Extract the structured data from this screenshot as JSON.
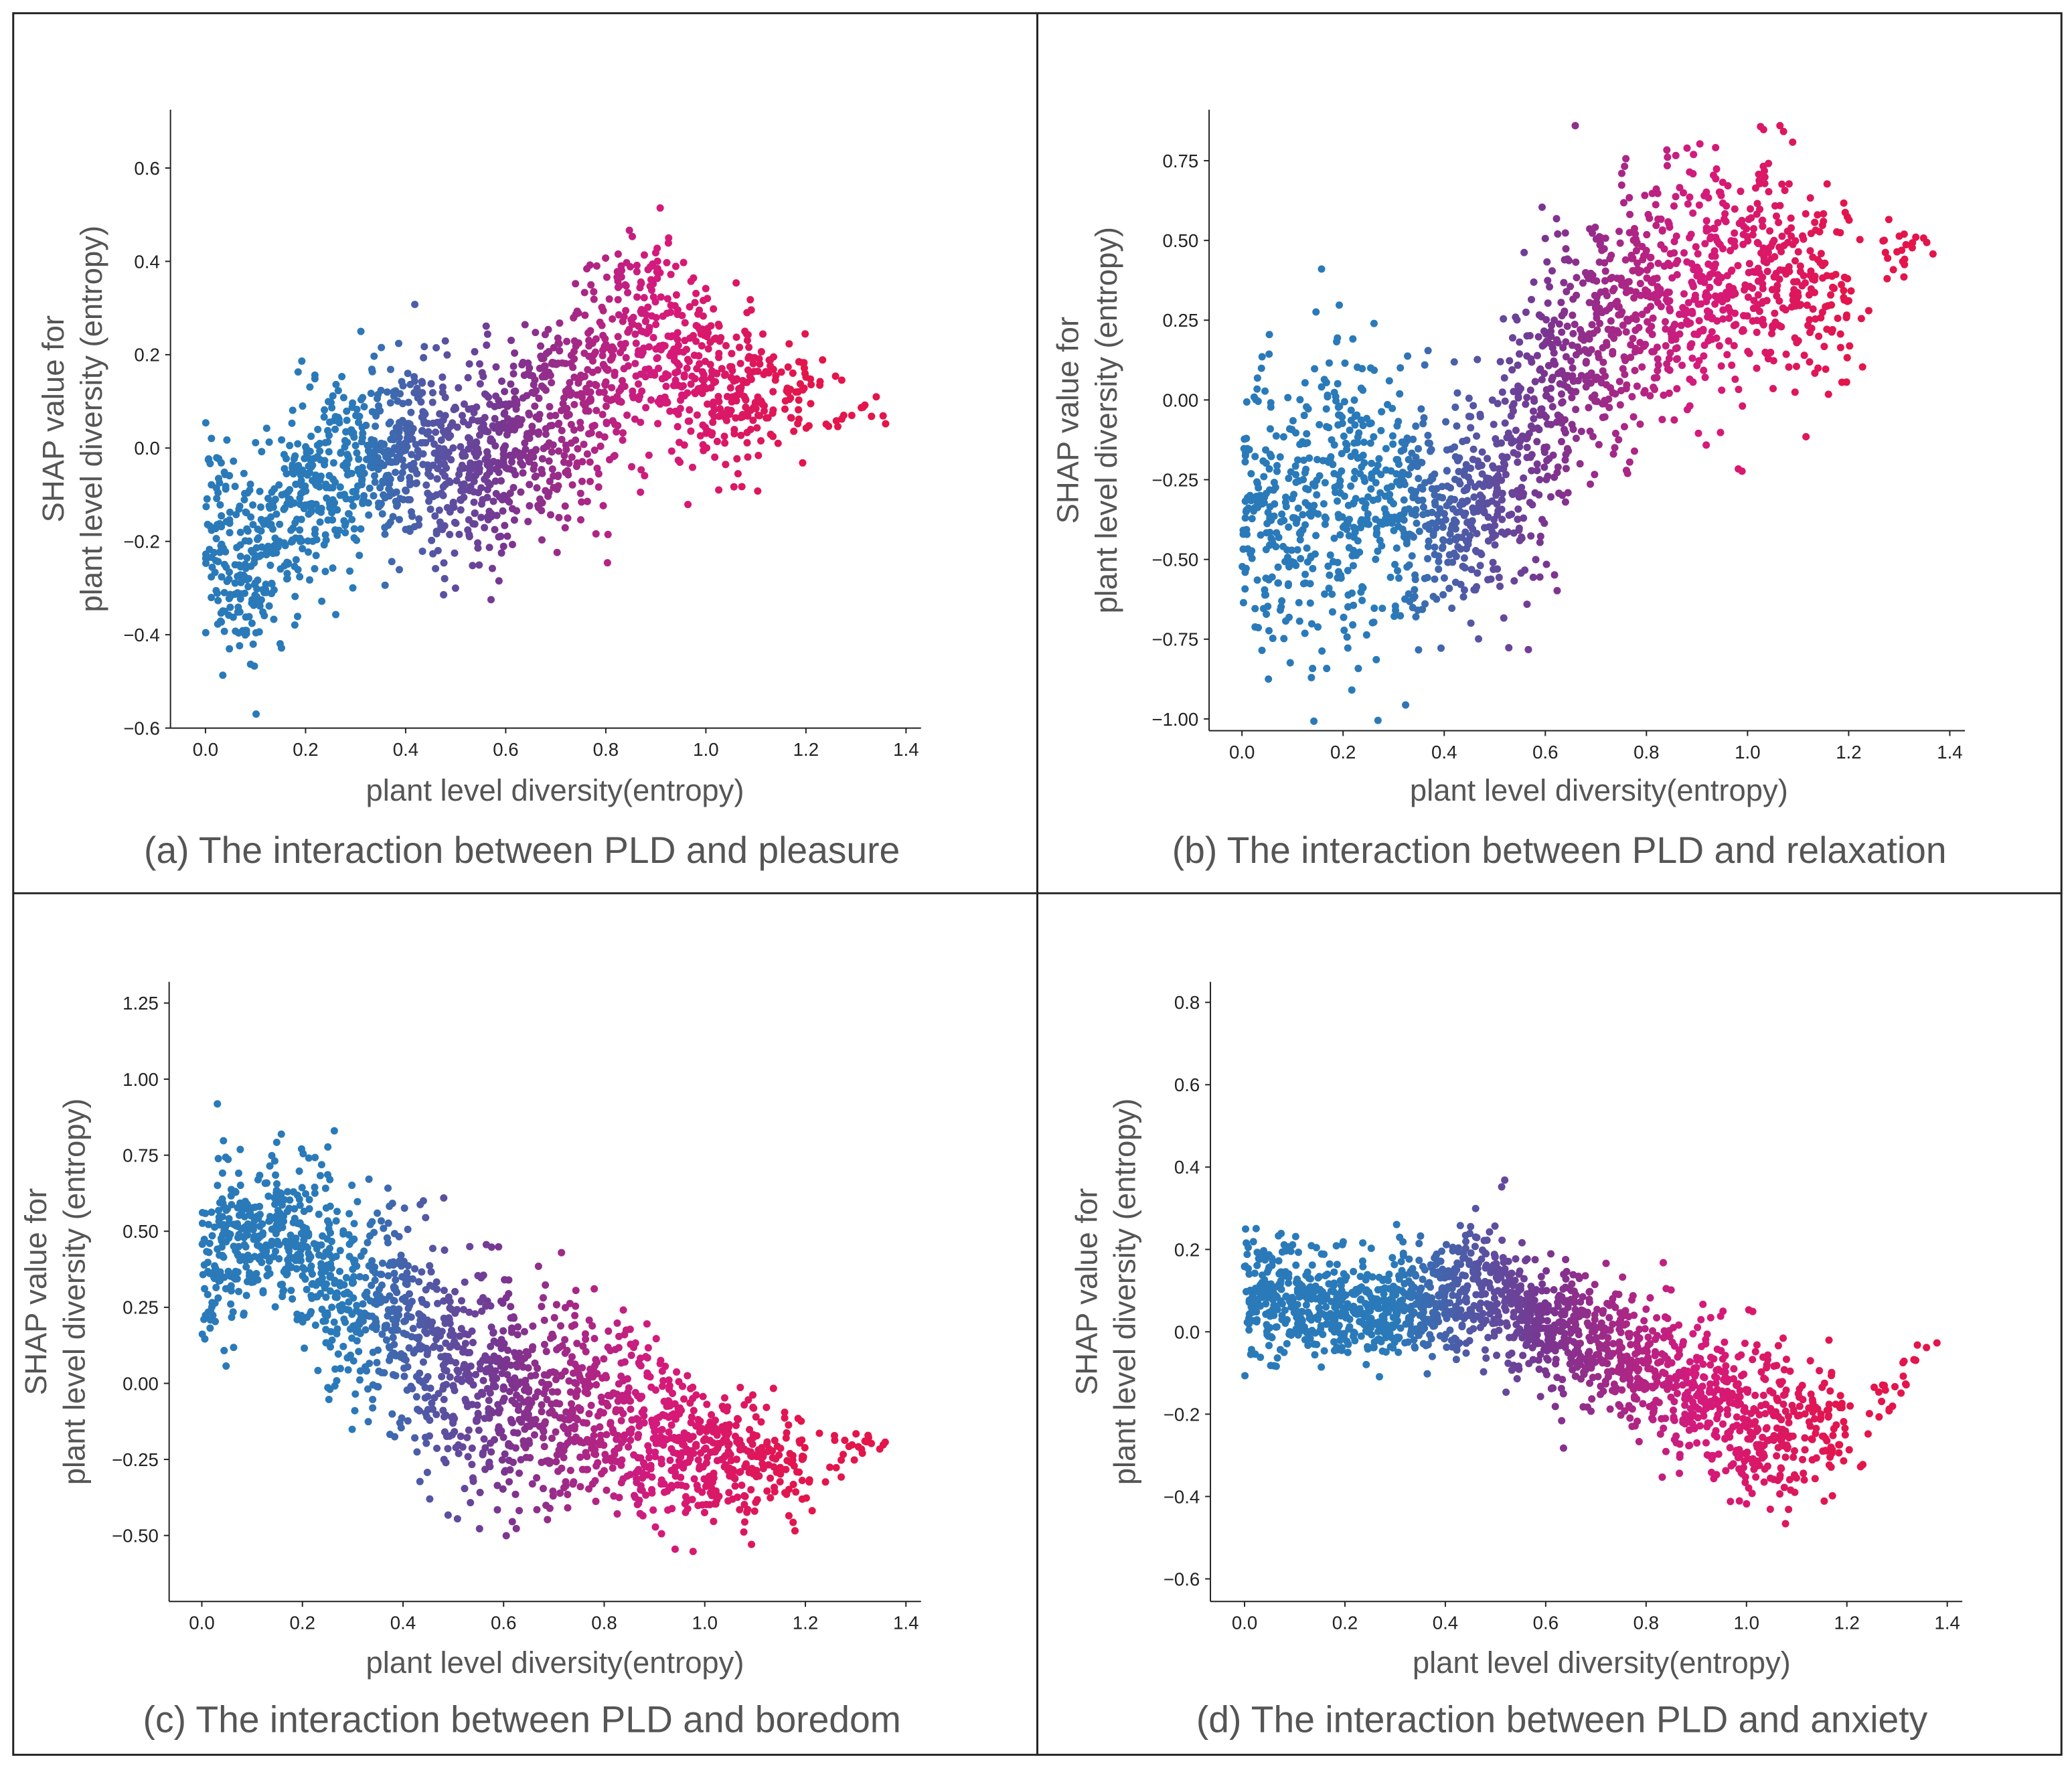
{
  "colors": {
    "low": "#2a7ab9",
    "mid": "#7a3590",
    "high": "#d41a7c",
    "end": "#e3154b",
    "frame": "#222222"
  },
  "chart_data": [
    {
      "type": "scatter",
      "caption": "(a) The interaction between PLD and pleasure",
      "xlabel": "plant level diversity(entropy)",
      "ylabel_line1": "SHAP value for",
      "ylabel_line2": "plant level diversity  (entropy)",
      "xticks": [
        "0.0",
        "0.2",
        "0.4",
        "0.6",
        "0.8",
        "1.0",
        "1.2",
        "1.4"
      ],
      "xtick_values": [
        0,
        0.2,
        0.4,
        0.6,
        0.8,
        1.0,
        1.2,
        1.4
      ],
      "yticks": [
        "0.6",
        "0.4",
        "0.2",
        "0.0",
        "−0.2",
        "−0.4",
        "−0.6"
      ],
      "ytick_values": [
        0.6,
        0.4,
        0.2,
        0,
        -0.2,
        -0.4,
        -0.6
      ],
      "xlim": [
        -0.07,
        1.43
      ],
      "ylim": [
        -0.6,
        0.725
      ],
      "color_by": "plant level diversity (blue low → red high)",
      "bands": [
        [
          0.0,
          -0.2,
          0.15,
          160
        ],
        [
          0.1,
          -0.25,
          0.12,
          150
        ],
        [
          0.2,
          -0.1,
          0.13,
          150
        ],
        [
          0.3,
          -0.05,
          0.12,
          170
        ],
        [
          0.4,
          0.0,
          0.12,
          170
        ],
        [
          0.5,
          -0.05,
          0.15,
          180
        ],
        [
          0.6,
          0.0,
          0.13,
          170
        ],
        [
          0.7,
          0.05,
          0.15,
          160
        ],
        [
          0.8,
          0.15,
          0.15,
          150
        ],
        [
          0.9,
          0.25,
          0.15,
          150
        ],
        [
          1.0,
          0.15,
          0.12,
          130
        ],
        [
          1.1,
          0.1,
          0.1,
          70
        ],
        [
          1.2,
          0.12,
          0.08,
          20
        ],
        [
          1.32,
          0.07,
          0.02,
          4
        ]
      ]
    },
    {
      "type": "scatter",
      "caption": "(b) The interaction between PLD and relaxation",
      "xlabel": "plant level diversity(entropy)",
      "ylabel_line1": "SHAP value for",
      "ylabel_line2": "plant level diversity  (entropy)",
      "xticks": [
        "0.0",
        "0.2",
        "0.4",
        "0.6",
        "0.8",
        "1.0",
        "1.2",
        "1.4"
      ],
      "xtick_values": [
        0,
        0.2,
        0.4,
        0.6,
        0.8,
        1.0,
        1.2,
        1.4
      ],
      "yticks": [
        "0.75",
        "0.50",
        "0.25",
        "0.00",
        "−0.25",
        "−0.50",
        "−0.75",
        "−1.00"
      ],
      "ytick_values": [
        0.75,
        0.5,
        0.25,
        0,
        -0.25,
        -0.5,
        -0.75,
        -1.0
      ],
      "xlim": [
        -0.065,
        1.43
      ],
      "ylim": [
        -1.037,
        0.91
      ],
      "color_by": "plant level diversity (blue low → red high)",
      "bands": [
        [
          0.0,
          -0.35,
          0.3,
          150
        ],
        [
          0.1,
          -0.4,
          0.3,
          150
        ],
        [
          0.2,
          -0.3,
          0.3,
          150
        ],
        [
          0.3,
          -0.3,
          0.25,
          160
        ],
        [
          0.4,
          -0.35,
          0.2,
          160
        ],
        [
          0.5,
          -0.3,
          0.25,
          170
        ],
        [
          0.6,
          0.0,
          0.3,
          170
        ],
        [
          0.7,
          0.2,
          0.25,
          170
        ],
        [
          0.8,
          0.3,
          0.25,
          160
        ],
        [
          0.9,
          0.35,
          0.25,
          150
        ],
        [
          1.0,
          0.4,
          0.25,
          140
        ],
        [
          1.1,
          0.4,
          0.2,
          90
        ],
        [
          1.2,
          0.3,
          0.2,
          25
        ],
        [
          1.33,
          0.5,
          0.03,
          4
        ]
      ]
    },
    {
      "type": "scatter",
      "caption": "(c) The interaction between PLD and boredom",
      "xlabel": "plant level diversity(entropy)",
      "ylabel_line1": "SHAP value for",
      "ylabel_line2": "plant level diversity  (entropy)",
      "xticks": [
        "0.0",
        "0.2",
        "0.4",
        "0.6",
        "0.8",
        "1.0",
        "1.2",
        "1.4"
      ],
      "xtick_values": [
        0,
        0.2,
        0.4,
        0.6,
        0.8,
        1.0,
        1.2,
        1.4
      ],
      "yticks": [
        "1.25",
        "1.00",
        "0.75",
        "0.50",
        "0.25",
        "0.00",
        "−0.25",
        "−0.50"
      ],
      "ytick_values": [
        1.25,
        1.0,
        0.75,
        0.5,
        0.25,
        0,
        -0.25,
        -0.5
      ],
      "xlim": [
        -0.065,
        1.43
      ],
      "ylim": [
        -0.717,
        1.32
      ],
      "color_by": "plant level diversity (blue low → red high)",
      "bands": [
        [
          0.0,
          0.4,
          0.2,
          160
        ],
        [
          0.1,
          0.5,
          0.15,
          160
        ],
        [
          0.2,
          0.45,
          0.2,
          160
        ],
        [
          0.3,
          0.25,
          0.22,
          170
        ],
        [
          0.4,
          0.2,
          0.2,
          170
        ],
        [
          0.5,
          0.05,
          0.25,
          170
        ],
        [
          0.6,
          -0.05,
          0.22,
          170
        ],
        [
          0.7,
          -0.05,
          0.22,
          160
        ],
        [
          0.8,
          -0.1,
          0.2,
          150
        ],
        [
          0.9,
          -0.15,
          0.2,
          150
        ],
        [
          1.0,
          -0.25,
          0.12,
          140
        ],
        [
          1.1,
          -0.25,
          0.12,
          80
        ],
        [
          1.2,
          -0.3,
          0.1,
          25
        ],
        [
          1.33,
          -0.2,
          0.02,
          4
        ]
      ]
    },
    {
      "type": "scatter",
      "caption": "(d) The interaction between PLD and anxiety",
      "xlabel": "plant level diversity(entropy)",
      "ylabel_line1": "SHAP value for",
      "ylabel_line2": "plant level diversity  (entropy)",
      "xticks": [
        "0.0",
        "0.2",
        "0.4",
        "0.6",
        "0.8",
        "1.0",
        "1.2",
        "1.4"
      ],
      "xtick_values": [
        0,
        0.2,
        0.4,
        0.6,
        0.8,
        1.0,
        1.2,
        1.4
      ],
      "yticks": [
        "0.8",
        "0.6",
        "0.4",
        "0.2",
        "0.0",
        "−0.2",
        "−0.4",
        "−0.6"
      ],
      "ytick_values": [
        0.8,
        0.6,
        0.4,
        0.2,
        0,
        -0.2,
        -0.4,
        -0.6
      ],
      "xlim": [
        -0.068,
        1.43
      ],
      "ylim": [
        -0.655,
        0.85
      ],
      "color_by": "plant level diversity (blue low → red high)",
      "bands": [
        [
          0.0,
          0.1,
          0.1,
          160
        ],
        [
          0.1,
          0.08,
          0.08,
          160
        ],
        [
          0.2,
          0.05,
          0.08,
          160
        ],
        [
          0.3,
          0.07,
          0.08,
          170
        ],
        [
          0.4,
          0.08,
          0.08,
          170
        ],
        [
          0.5,
          0.1,
          0.1,
          170
        ],
        [
          0.6,
          0.0,
          0.1,
          170
        ],
        [
          0.7,
          -0.03,
          0.1,
          160
        ],
        [
          0.8,
          -0.08,
          0.1,
          150
        ],
        [
          0.9,
          -0.15,
          0.12,
          150
        ],
        [
          1.0,
          -0.2,
          0.12,
          140
        ],
        [
          1.1,
          -0.25,
          0.1,
          80
        ],
        [
          1.2,
          -0.25,
          0.1,
          25
        ],
        [
          1.34,
          -0.05,
          0.02,
          3
        ]
      ]
    }
  ]
}
